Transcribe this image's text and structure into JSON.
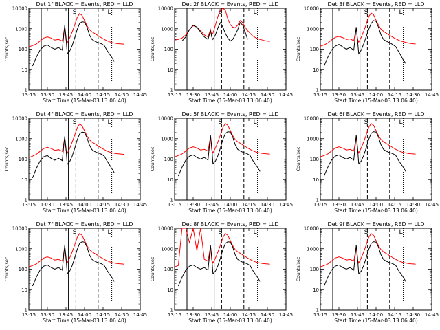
{
  "chart_data": {
    "type": "line",
    "xtick_labels": [
      "13:15",
      "13:30",
      "13:45",
      "14:00",
      "14:15",
      "14:30",
      "14:45"
    ],
    "xlim": [
      "13:15",
      "14:45"
    ],
    "ytick_labels": [
      "1",
      "10",
      "100",
      "1000",
      "10000"
    ],
    "ylim": [
      1,
      10000
    ],
    "yscale": "log",
    "ylabel": "Counts/sec",
    "xlabel": "Start Time (15-Mar-03 13:06:40)",
    "grid": false,
    "series_colors": {
      "events": "#000000",
      "lld": "#ff0000"
    },
    "markers": {
      "solid": [
        "13:25",
        "13:47"
      ],
      "dashed": [
        "13:53",
        "14:11"
      ],
      "dotted": [
        "14:22"
      ],
      "letters": [
        {
          "text": "S",
          "t": "13:52"
        },
        {
          "text": "L",
          "t": "14:20"
        }
      ]
    },
    "time_points": [
      "13:15",
      "13:18",
      "13:21",
      "13:24",
      "13:27",
      "13:30",
      "13:33",
      "13:36",
      "13:39",
      "13:42",
      "13:44",
      "13:45",
      "13:46",
      "13:48",
      "13:50",
      "13:52",
      "13:54",
      "13:56",
      "13:58",
      "14:00",
      "14:02",
      "14:04",
      "14:06",
      "14:08",
      "14:10",
      "14:12",
      "14:14",
      "14:16",
      "14:18",
      "14:20",
      "14:22",
      "14:24",
      "14:26",
      "14:28",
      "14:30",
      "14:32",
      "14:34",
      "14:36",
      "14:38",
      "14:40",
      "14:42",
      "14:45"
    ],
    "panels": [
      {
        "title": "Det 1f BLACK = Events, RED = LLD",
        "events": [
          null,
          15,
          40,
          90,
          140,
          160,
          120,
          100,
          120,
          90,
          1500,
          400,
          60,
          80,
          150,
          350,
          900,
          1800,
          2200,
          2100,
          1200,
          500,
          300,
          250,
          220,
          200,
          180,
          150,
          90,
          60,
          40,
          25,
          null,
          null,
          null,
          null,
          null,
          null,
          null,
          null,
          null,
          null
        ],
        "lld": [
          130,
          150,
          180,
          250,
          350,
          400,
          350,
          280,
          300,
          250,
          1200,
          300,
          200,
          350,
          700,
          1500,
          3500,
          5500,
          4500,
          2500,
          1400,
          900,
          700,
          600,
          500,
          420,
          350,
          300,
          260,
          230,
          210,
          200,
          190,
          185,
          180,
          175,
          null,
          null,
          null,
          null,
          null,
          null
        ]
      },
      {
        "title": "Det 2f BLACK = Events, RED = LLD",
        "events": [
          null,
          null,
          250,
          400,
          900,
          1500,
          1200,
          700,
          400,
          300,
          800,
          400,
          300,
          500,
          1100,
          2000,
          1200,
          600,
          350,
          250,
          300,
          500,
          900,
          2000,
          1500,
          700,
          300,
          null,
          null,
          null,
          null,
          null,
          null,
          null,
          null,
          null,
          null,
          null,
          null,
          null,
          null,
          null
        ],
        "lld": [
          280,
          300,
          350,
          500,
          900,
          1400,
          1200,
          800,
          500,
          400,
          900,
          500,
          600,
          1500,
          4000,
          8000,
          12000,
          8000,
          3000,
          1600,
          1200,
          1100,
          1500,
          2500,
          2000,
          1200,
          800,
          600,
          450,
          380,
          330,
          300,
          280,
          260,
          250,
          240,
          null,
          null,
          null,
          null,
          null,
          null
        ]
      },
      {
        "title": "Det 3f BLACK = Events, RED = LLD",
        "events": [
          null,
          15,
          40,
          90,
          140,
          170,
          130,
          100,
          120,
          90,
          1200,
          300,
          60,
          90,
          180,
          400,
          900,
          1800,
          2500,
          2300,
          1200,
          500,
          300,
          250,
          220,
          190,
          160,
          130,
          80,
          50,
          30,
          20,
          null,
          null,
          null,
          null,
          null,
          null,
          null,
          null,
          null,
          null
        ],
        "lld": [
          140,
          160,
          200,
          280,
          380,
          420,
          370,
          300,
          320,
          260,
          1100,
          320,
          220,
          380,
          750,
          1600,
          3800,
          5800,
          4800,
          2600,
          1500,
          950,
          750,
          620,
          520,
          440,
          370,
          320,
          280,
          250,
          230,
          215,
          200,
          190,
          185,
          180,
          null,
          null,
          null,
          null,
          null,
          null
        ]
      },
      {
        "title": "Det 4f BLACK = Events, RED = LLD",
        "events": [
          null,
          12,
          35,
          80,
          130,
          150,
          110,
          90,
          110,
          85,
          1300,
          350,
          55,
          75,
          140,
          330,
          850,
          1700,
          2100,
          2000,
          1100,
          480,
          290,
          240,
          210,
          190,
          170,
          140,
          85,
          55,
          35,
          22,
          null,
          null,
          null,
          null,
          null,
          null,
          null,
          null,
          null,
          null
        ],
        "lld": [
          120,
          140,
          170,
          240,
          330,
          380,
          330,
          270,
          290,
          240,
          1100,
          290,
          190,
          330,
          680,
          1450,
          3300,
          5200,
          4300,
          2400,
          1350,
          880,
          680,
          580,
          480,
          400,
          340,
          290,
          250,
          225,
          205,
          195,
          185,
          180,
          175,
          170,
          null,
          null,
          null,
          null,
          null,
          null
        ]
      },
      {
        "title": "Det 5f BLACK = Events, RED = LLD",
        "events": [
          null,
          15,
          40,
          90,
          140,
          160,
          120,
          100,
          120,
          90,
          1500,
          400,
          60,
          80,
          150,
          350,
          900,
          1800,
          2200,
          2100,
          1200,
          500,
          300,
          250,
          220,
          200,
          180,
          150,
          90,
          60,
          40,
          25,
          null,
          null,
          null,
          null,
          null,
          null,
          null,
          null,
          null,
          null
        ],
        "lld": [
          130,
          150,
          180,
          250,
          350,
          400,
          350,
          280,
          300,
          250,
          1200,
          300,
          200,
          350,
          700,
          1500,
          3500,
          5500,
          4500,
          2500,
          1400,
          900,
          700,
          600,
          500,
          420,
          350,
          300,
          260,
          230,
          210,
          200,
          190,
          185,
          180,
          175,
          null,
          null,
          null,
          null,
          null,
          null
        ]
      },
      {
        "title": "Det 6f BLACK = Events, RED = LLD",
        "events": [
          null,
          15,
          40,
          90,
          140,
          160,
          120,
          100,
          120,
          90,
          1500,
          400,
          60,
          80,
          150,
          350,
          900,
          1800,
          2200,
          2100,
          1200,
          500,
          300,
          250,
          220,
          200,
          180,
          150,
          90,
          60,
          40,
          25,
          null,
          null,
          null,
          null,
          null,
          null,
          null,
          null,
          null,
          null
        ],
        "lld": [
          130,
          150,
          180,
          250,
          350,
          400,
          350,
          280,
          300,
          250,
          1200,
          300,
          200,
          350,
          700,
          1500,
          3500,
          5500,
          4500,
          2500,
          1400,
          900,
          700,
          600,
          500,
          420,
          350,
          300,
          260,
          230,
          210,
          200,
          190,
          185,
          180,
          175,
          null,
          null,
          null,
          null,
          null,
          null
        ]
      },
      {
        "title": "Det 7f BLACK = Events, RED = LLD",
        "events": [
          null,
          15,
          40,
          90,
          140,
          160,
          120,
          100,
          120,
          90,
          1500,
          400,
          60,
          80,
          150,
          350,
          900,
          1800,
          2200,
          2100,
          1200,
          500,
          300,
          250,
          220,
          200,
          180,
          150,
          90,
          60,
          40,
          25,
          null,
          null,
          null,
          null,
          null,
          null,
          null,
          null,
          null,
          null
        ],
        "lld": [
          130,
          150,
          180,
          250,
          350,
          400,
          350,
          280,
          300,
          250,
          1200,
          300,
          200,
          350,
          700,
          1500,
          3500,
          5500,
          4500,
          2500,
          1400,
          900,
          700,
          600,
          500,
          420,
          350,
          300,
          260,
          230,
          210,
          200,
          190,
          185,
          180,
          175,
          null,
          null,
          null,
          null,
          null,
          null
        ]
      },
      {
        "title": "Det 8f BLACK = Events, RED = LLD",
        "events": [
          null,
          15,
          40,
          90,
          140,
          160,
          120,
          100,
          120,
          90,
          1500,
          400,
          60,
          80,
          150,
          350,
          900,
          1800,
          2200,
          2100,
          1200,
          500,
          300,
          250,
          220,
          200,
          180,
          150,
          90,
          60,
          40,
          25,
          null,
          null,
          null,
          null,
          null,
          null,
          null,
          null,
          null,
          null
        ],
        "lld": [
          130,
          150,
          10000,
          10000,
          2000,
          10000,
          800,
          10000,
          300,
          250,
          1200,
          300,
          200,
          350,
          700,
          1500,
          3500,
          5500,
          4500,
          2500,
          1400,
          900,
          700,
          600,
          500,
          420,
          350,
          300,
          260,
          230,
          210,
          200,
          190,
          185,
          180,
          175,
          null,
          null,
          null,
          null,
          null,
          null
        ]
      },
      {
        "title": "Det 9f BLACK = Events, RED = LLD",
        "events": [
          null,
          15,
          40,
          90,
          140,
          160,
          120,
          100,
          120,
          90,
          1500,
          400,
          60,
          80,
          150,
          350,
          900,
          1800,
          2200,
          2100,
          1200,
          500,
          300,
          250,
          220,
          200,
          180,
          150,
          90,
          60,
          40,
          25,
          null,
          null,
          null,
          null,
          null,
          null,
          null,
          null,
          null,
          null
        ],
        "lld": [
          130,
          150,
          180,
          250,
          350,
          400,
          350,
          280,
          300,
          250,
          1200,
          300,
          200,
          350,
          700,
          1500,
          3500,
          5500,
          4500,
          2500,
          1400,
          900,
          700,
          600,
          500,
          420,
          350,
          300,
          260,
          230,
          210,
          200,
          190,
          185,
          180,
          175,
          null,
          null,
          null,
          null,
          null,
          null
        ]
      }
    ]
  }
}
